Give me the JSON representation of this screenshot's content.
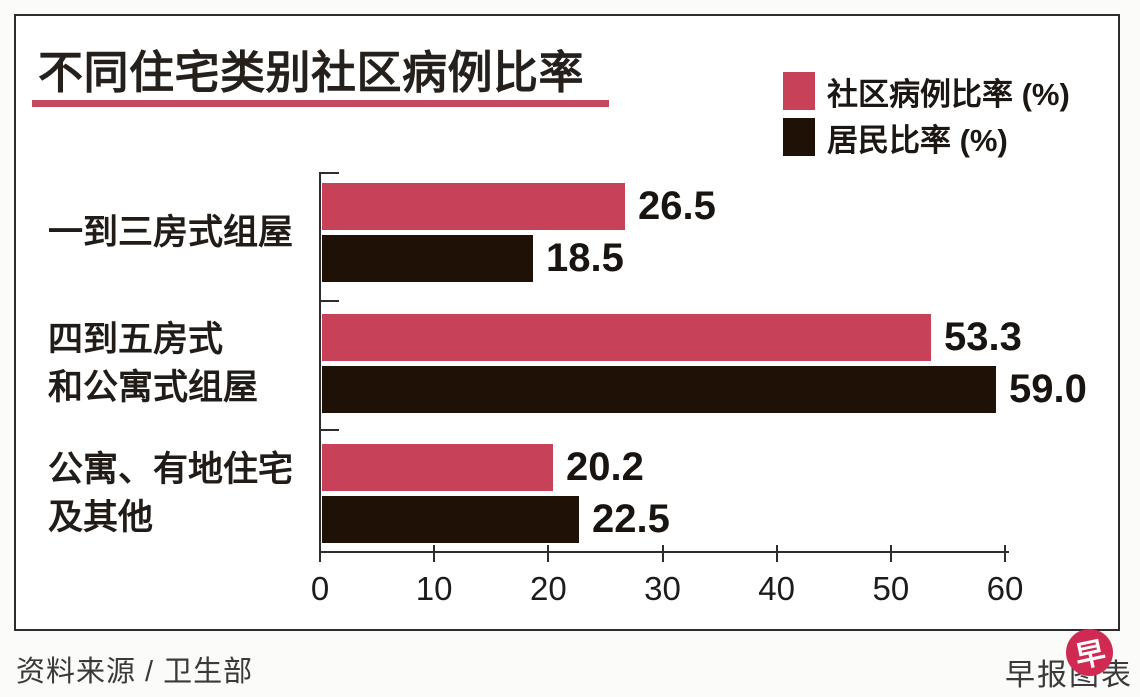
{
  "title": "不同住宅类别社区病例比率",
  "legend": [
    {
      "label": "社区病例比率 (%)",
      "color": "#c74158"
    },
    {
      "label": "居民比率 (%)",
      "color": "#201106"
    }
  ],
  "chart_data": {
    "type": "bar",
    "orientation": "horizontal",
    "title": "不同住宅类别社区病例比率",
    "categories": [
      "一到三房式组屋",
      "四到五房式\n和公寓式组屋",
      "公寓、有地住宅\n及其他"
    ],
    "series": [
      {
        "name": "社区病例比率 (%)",
        "color": "#c74158",
        "values": [
          26.5,
          53.3,
          20.2
        ],
        "labels": [
          "26.5",
          "53.3",
          "20.2"
        ]
      },
      {
        "name": "居民比率 (%)",
        "color": "#201106",
        "values": [
          18.5,
          59.0,
          22.5
        ],
        "labels": [
          "18.5",
          "59.0",
          "22.5"
        ]
      }
    ],
    "xlim": [
      0,
      60
    ],
    "x_ticks": [
      "0",
      "10",
      "20",
      "30",
      "40",
      "50",
      "60"
    ],
    "legend_position": "top-right",
    "grid": false
  },
  "footer": {
    "source": "资料来源 / 卫生部",
    "credit": "早报图表",
    "logo_glyph": "早"
  },
  "colors": {
    "series_community": "#c74158",
    "series_residents": "#201106",
    "title_underline": "#c4495f",
    "axis": "#2d2d2d",
    "logo": "#d02a52"
  }
}
